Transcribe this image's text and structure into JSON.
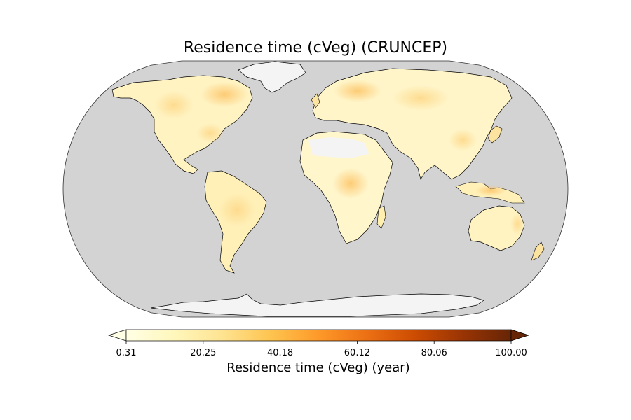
{
  "title": "Residence time (cVeg) (CRUNCEP)",
  "projection": "Robinson",
  "colors": {
    "ocean": "#d3d3d3",
    "no_data": "#f2f2f2",
    "coastline": "#000000"
  },
  "colorbar": {
    "label": "Residence time (cVeg) (year)",
    "min": 0.31,
    "max": 100.0,
    "extend": "both",
    "ticks": [
      "0.31",
      "20.25",
      "40.18",
      "60.12",
      "80.06",
      "100.00"
    ],
    "colors": [
      "#ffffe5",
      "#fff7bc",
      "#fee391",
      "#fec44f",
      "#fe9929",
      "#ec7014",
      "#cc4c02",
      "#993404",
      "#662506"
    ]
  }
}
